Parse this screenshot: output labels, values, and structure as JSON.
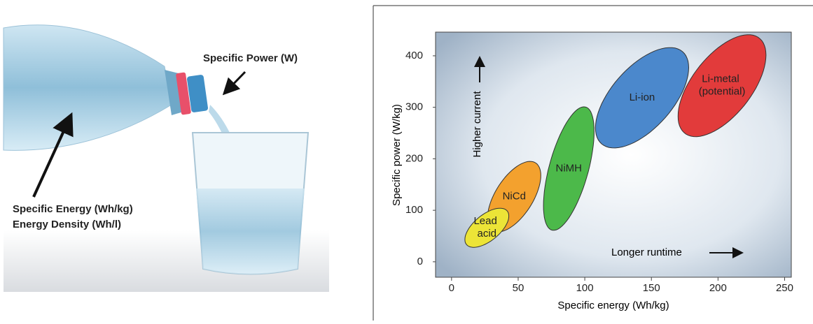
{
  "illustration": {
    "power_label": "Specific Power (W)",
    "energy_label": "Specific Energy (Wh/kg)",
    "density_label": "Energy Density (Wh/l)"
  },
  "chart_data": {
    "type": "region",
    "xlabel": "Specific energy (Wh/kg)",
    "ylabel": "Specific power (W/kg)",
    "annotations": [
      "Higher current",
      "Longer runtime"
    ],
    "xlim": [
      -12,
      255
    ],
    "ylim": [
      -30,
      446
    ],
    "xticks": [
      0,
      50,
      100,
      150,
      200,
      250
    ],
    "yticks": [
      0,
      100,
      200,
      300,
      400
    ],
    "series": [
      {
        "name": "NiCd",
        "color": "#f3a12e",
        "x": [
          27,
          67
        ],
        "y": [
          58,
          195
        ]
      },
      {
        "name": "Lead acid",
        "color": "#ece437",
        "x": [
          10,
          43
        ],
        "y": [
          28,
          104
        ]
      },
      {
        "name": "NiMH",
        "color": "#4cb94a",
        "x": [
          69,
          107
        ],
        "y": [
          61,
          301
        ]
      },
      {
        "name": "Li-ion",
        "color": "#4b88cc",
        "x": [
          108,
          178
        ],
        "y": [
          221,
          416
        ]
      },
      {
        "name": "Li-metal (potential)",
        "color": "#e23b3b",
        "x": [
          170,
          236
        ],
        "y": [
          243,
          441
        ]
      }
    ]
  }
}
